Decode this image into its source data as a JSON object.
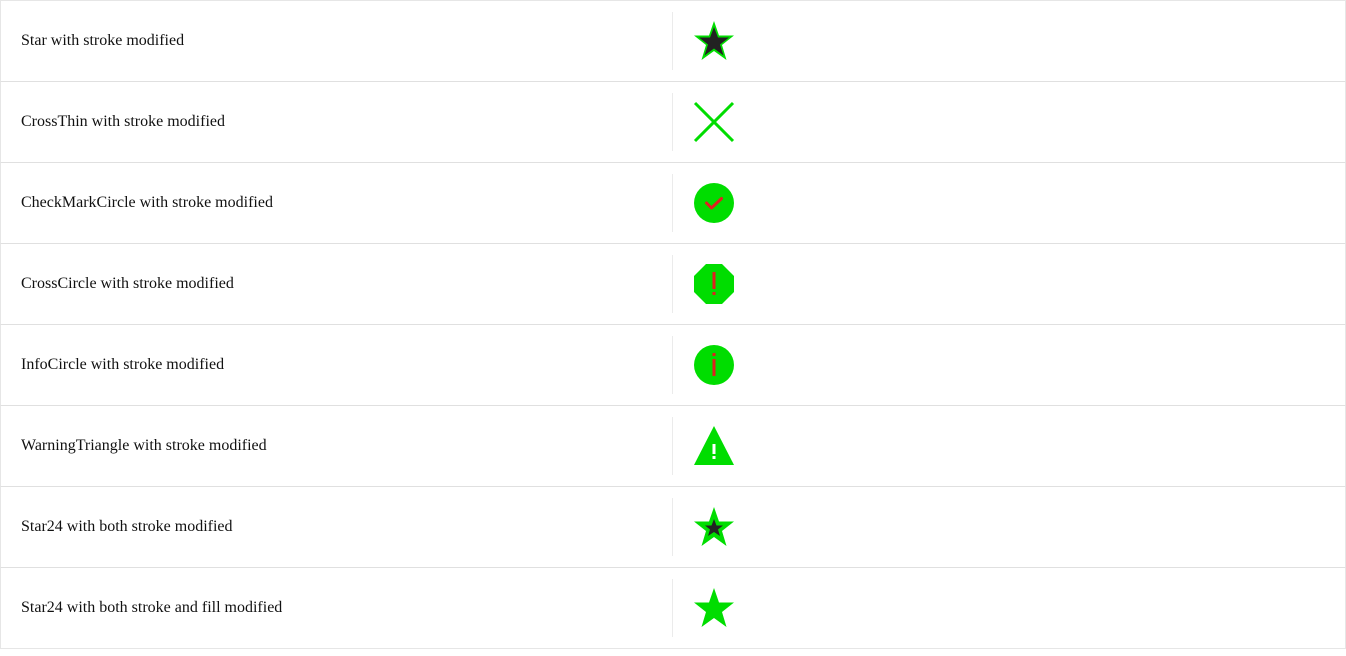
{
  "rows": [
    {
      "label": "Star with stroke modified",
      "icon": "star-icon"
    },
    {
      "label": "CrossThin with stroke modified",
      "icon": "cross-thin-icon"
    },
    {
      "label": "CheckMarkCircle with stroke modified",
      "icon": "check-mark-circle-icon"
    },
    {
      "label": "CrossCircle with stroke modified",
      "icon": "cross-circle-icon"
    },
    {
      "label": "InfoCircle with stroke modified",
      "icon": "info-circle-icon"
    },
    {
      "label": "WarningTriangle with stroke modified",
      "icon": "warning-triangle-icon"
    },
    {
      "label": "Star24 with both stroke modified",
      "icon": "star24-icon"
    },
    {
      "label": "Star24 with both stroke and fill modified",
      "icon": "star24-filled-icon"
    }
  ],
  "colors": {
    "green": "#00dd00",
    "red": "#e02020",
    "dark": "#222222",
    "divider": "#e6e6e6"
  }
}
